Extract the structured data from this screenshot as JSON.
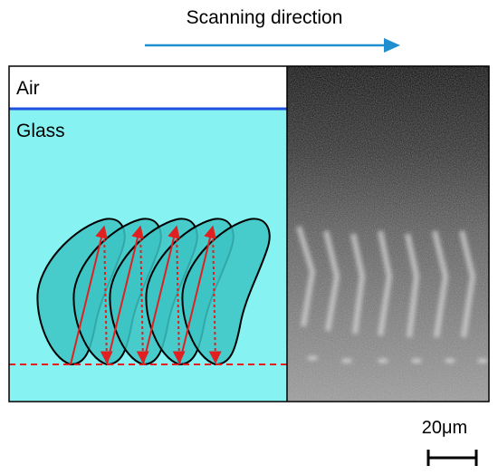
{
  "header": {
    "title": "Scanning direction"
  },
  "labels": {
    "air": "Air",
    "glass": "Glass"
  },
  "scale_bar": {
    "label": "20μm"
  }
}
